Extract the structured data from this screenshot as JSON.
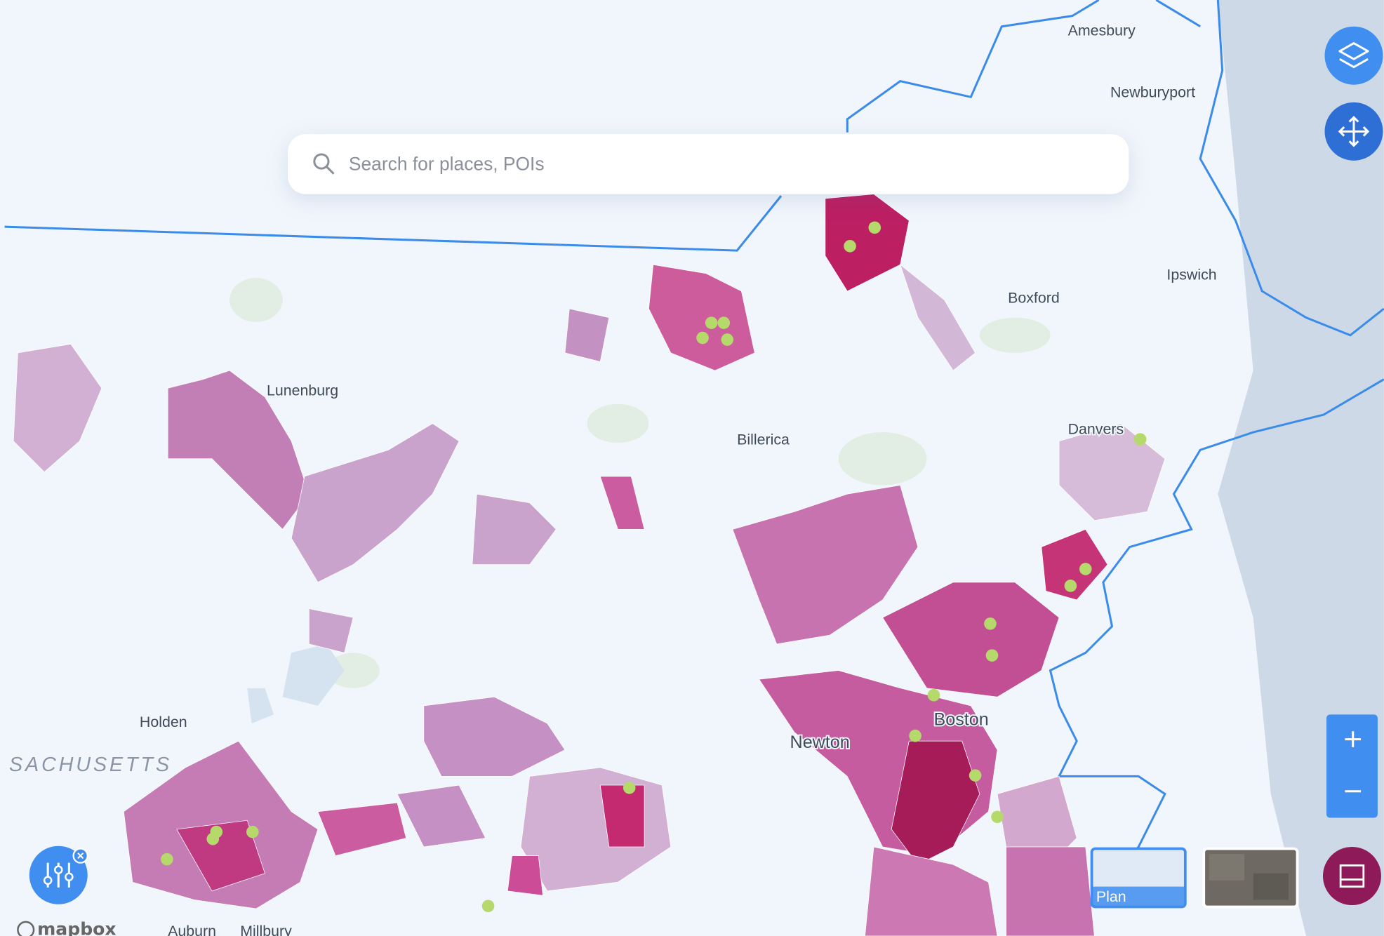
{
  "search": {
    "placeholder": "Search for places, POIs"
  },
  "places": [
    "Amesbury",
    "Newburyport",
    "Ipswich",
    "Boxford",
    "Danvers",
    "Billerica",
    "Lunenburg",
    "Holden",
    "SACHUSETTS",
    "Newton",
    "Boston",
    "Auburn",
    "Millbury"
  ],
  "basemaps": {
    "plan": "Plan"
  },
  "attribution": "mapbox"
}
